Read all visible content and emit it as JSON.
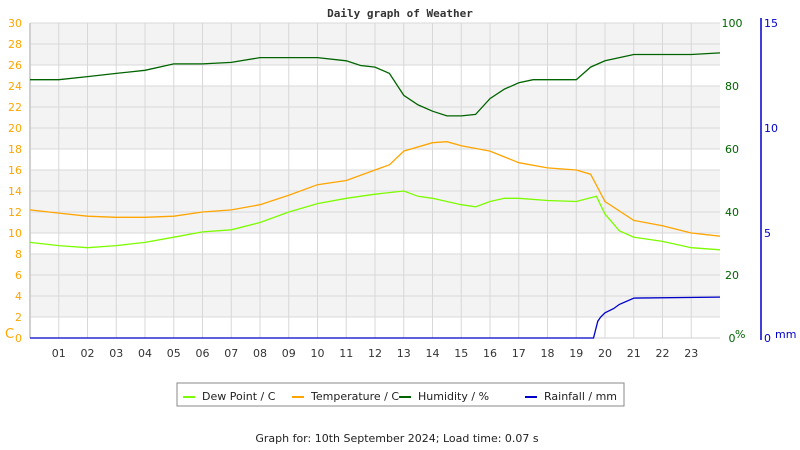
{
  "chart_data": {
    "type": "line",
    "title": "Daily graph of Weather",
    "footer": "Graph for: 10th September 2024; Load time: 0.07 s",
    "x_ticks": [
      "01",
      "02",
      "03",
      "04",
      "05",
      "06",
      "07",
      "08",
      "09",
      "10",
      "11",
      "12",
      "13",
      "14",
      "15",
      "16",
      "17",
      "18",
      "19",
      "20",
      "21",
      "22",
      "23"
    ],
    "xlim": [
      0,
      24
    ],
    "grid": true,
    "legend_position": "bottom",
    "axes": {
      "left": {
        "unit_label": "C",
        "range": [
          0,
          30
        ],
        "ticks": [
          0,
          2,
          4,
          6,
          8,
          10,
          12,
          14,
          16,
          18,
          20,
          22,
          24,
          26,
          28,
          30
        ],
        "color": "#ffa500"
      },
      "right1": {
        "unit_label": "%",
        "range": [
          0,
          100
        ],
        "ticks": [
          0,
          20,
          40,
          60,
          80,
          100
        ],
        "color": "#006400"
      },
      "right2": {
        "unit_label": "mm",
        "range": [
          0,
          15
        ],
        "ticks": [
          0,
          5,
          10,
          15
        ],
        "color": "#0000cc"
      }
    },
    "series": [
      {
        "name": "Dew Point / C",
        "axis": "left",
        "color": "#7cfc00",
        "x": [
          0,
          1,
          2,
          3,
          4,
          5,
          6,
          7,
          8,
          9,
          10,
          11,
          12,
          13,
          13.5,
          14,
          15,
          15.5,
          16,
          16.5,
          17,
          18,
          19,
          19.7,
          20,
          20.5,
          21,
          22,
          23,
          24
        ],
        "y": [
          9.1,
          8.8,
          8.6,
          8.8,
          9.1,
          9.6,
          10.1,
          10.3,
          11.0,
          12.0,
          12.8,
          13.3,
          13.7,
          14.0,
          13.5,
          13.3,
          12.7,
          12.5,
          13.0,
          13.3,
          13.3,
          13.1,
          13.0,
          13.5,
          11.8,
          10.2,
          9.6,
          9.2,
          8.6,
          8.4
        ]
      },
      {
        "name": "Temperature / C",
        "axis": "left",
        "color": "#ffa500",
        "x": [
          0,
          1,
          2,
          3,
          4,
          5,
          6,
          7,
          8,
          9,
          10,
          11,
          12,
          12.5,
          13,
          14,
          14.5,
          15,
          16,
          17,
          18,
          19,
          19.5,
          20,
          21,
          22,
          23,
          24
        ],
        "y": [
          12.2,
          11.9,
          11.6,
          11.5,
          11.5,
          11.6,
          12.0,
          12.2,
          12.7,
          13.6,
          14.6,
          15.0,
          16.0,
          16.5,
          17.8,
          18.6,
          18.7,
          18.3,
          17.8,
          16.7,
          16.2,
          16.0,
          15.6,
          13.0,
          11.2,
          10.7,
          10.0,
          9.7
        ]
      },
      {
        "name": "Humidity / %",
        "axis": "right1",
        "color": "#006400",
        "x": [
          0,
          1,
          2,
          3,
          4,
          5,
          6,
          7,
          8,
          9,
          10,
          11,
          11.5,
          12,
          12.5,
          13,
          13.5,
          14,
          14.5,
          15,
          15.5,
          16,
          16.5,
          17,
          17.5,
          18,
          19,
          19.5,
          20,
          21,
          22,
          23,
          24
        ],
        "y": [
          82,
          82,
          83,
          84,
          85,
          87,
          87,
          87.5,
          89,
          89,
          89,
          88,
          86.5,
          86,
          84,
          77,
          74,
          72,
          70.5,
          70.5,
          71,
          76,
          79,
          81,
          82,
          82,
          82,
          86,
          88,
          90,
          90,
          90,
          90.5
        ]
      },
      {
        "name": "Rainfall / mm",
        "axis": "right2",
        "color": "#0000cc",
        "x": [
          0,
          19.6,
          19.75,
          19.85,
          20.0,
          20.3,
          20.5,
          21.0,
          24
        ],
        "y": [
          0,
          0,
          0.8,
          1.0,
          1.2,
          1.4,
          1.6,
          1.9,
          1.95
        ]
      }
    ]
  }
}
